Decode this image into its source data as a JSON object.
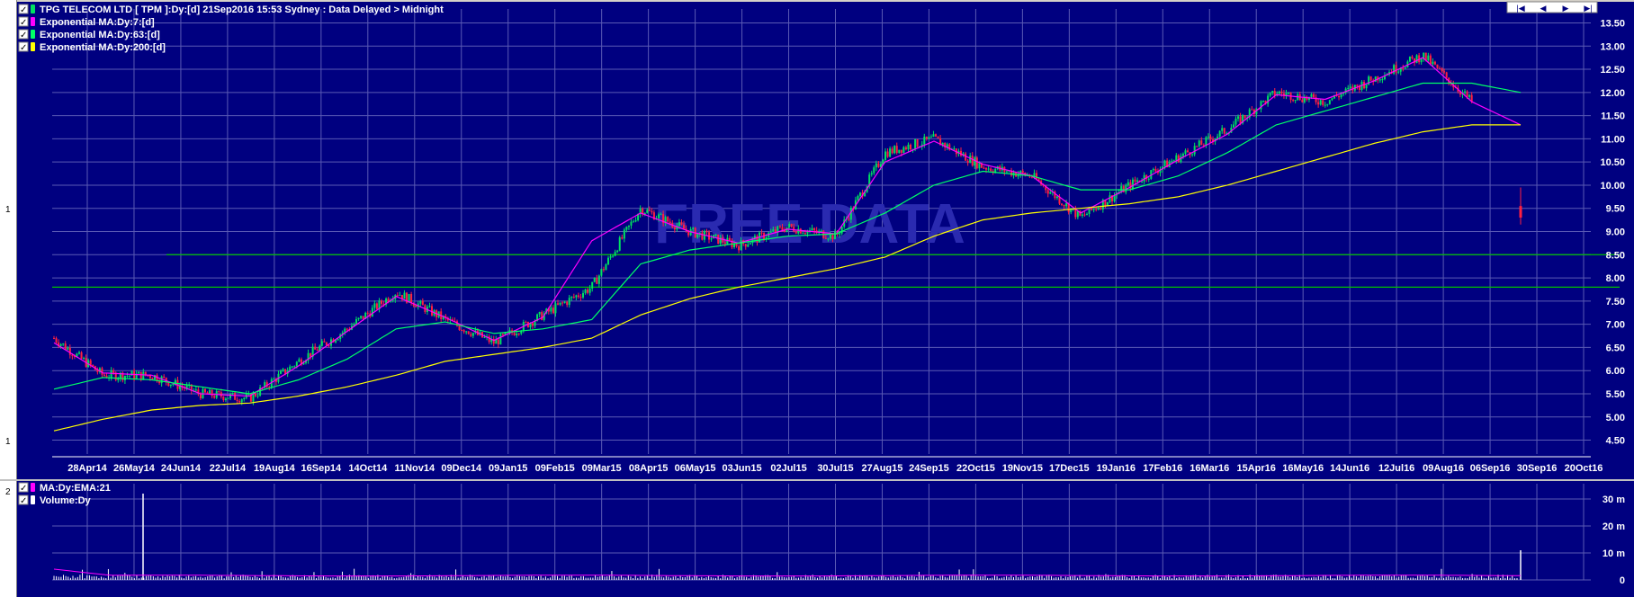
{
  "colors": {
    "background": "#000080",
    "grid": "#5a5ab4",
    "price_up": "#00e060",
    "price_down": "#ff2040",
    "ema7": "#ff00ff",
    "ema63": "#00ff66",
    "ema200": "#ffff00",
    "hline": "#00c000",
    "text": "#ffffff",
    "volume": "#ffffff",
    "watermark": "#2a2ab0"
  },
  "pane_numbers": {
    "top": "1",
    "bottom_top": "1",
    "bottom_bottom": "2"
  },
  "legend_top": [
    {
      "label": "TPG TELECOM LTD [ TPM ]:Dy:[d]  21Sep2016 15:53 Sydney : Data Delayed > Midnight",
      "color": "#00e060"
    },
    {
      "label": "Exponential MA:Dy:7:[d]",
      "color": "#ff00ff"
    },
    {
      "label": "Exponential MA:Dy:63:[d]",
      "color": "#00ff66"
    },
    {
      "label": "Exponential MA:Dy:200:[d]",
      "color": "#ffff00"
    }
  ],
  "legend_bottom": [
    {
      "label": "MA:Dy:EMA:21",
      "color": "#ff00ff"
    },
    {
      "label": "Volume:Dy",
      "color": "#ffffff"
    }
  ],
  "nav_buttons": [
    "|◀",
    "◀",
    "▶",
    "▶|"
  ],
  "watermark": "FREE DATA",
  "chart_data": [
    {
      "type": "line",
      "title": "TPG TELECOM LTD [ TPM ]:Dy:[d]",
      "ylim": [
        4.2,
        13.8
      ],
      "y_ticks": [
        "4.50",
        "5.00",
        "5.50",
        "6.00",
        "6.50",
        "7.00",
        "7.50",
        "8.00",
        "8.50",
        "9.00",
        "9.50",
        "10.00",
        "10.50",
        "11.00",
        "11.50",
        "12.00",
        "12.50",
        "13.00",
        "13.50"
      ],
      "x_ticks": [
        "28Apr14",
        "26May14",
        "24Jun14",
        "22Jul14",
        "19Aug14",
        "16Sep14",
        "14Oct14",
        "11Nov14",
        "09Dec14",
        "09Jan15",
        "09Feb15",
        "09Mar15",
        "08Apr15",
        "06May15",
        "03Jun15",
        "02Jul15",
        "30Jul15",
        "27Aug15",
        "24Sep15",
        "22Oct15",
        "19Nov15",
        "17Dec15",
        "19Jan16",
        "17Feb16",
        "16Mar16",
        "15Apr16",
        "16May16",
        "14Jun16",
        "12Jul16",
        "09Aug16",
        "06Sep16",
        "30Sep16",
        "20Oct16"
      ],
      "horizontal_lines": [
        8.5,
        7.8
      ],
      "series": [
        {
          "name": "TPG TELECOM LTD [ TPM ]:Dy:[d]",
          "x": [
            "Apr14",
            "May14",
            "Jun14",
            "Jul14",
            "Aug14",
            "Sep14",
            "Oct14",
            "Nov14",
            "Dec14",
            "Jan15",
            "Feb15",
            "Mar15",
            "Apr15",
            "May15",
            "Jun15",
            "Jul15",
            "Aug15",
            "Sep15",
            "Oct15",
            "Nov15",
            "Dec15",
            "Jan16",
            "Feb16",
            "Mar16",
            "Apr16",
            "May16",
            "Jun16",
            "Jul16",
            "Aug16",
            "Sep16",
            "21Sep16"
          ],
          "values": [
            6.7,
            5.9,
            5.9,
            5.5,
            5.4,
            6.2,
            6.9,
            7.7,
            7.1,
            6.6,
            7.2,
            7.8,
            9.5,
            9.0,
            8.7,
            9.1,
            8.9,
            10.7,
            11.0,
            10.4,
            10.2,
            9.3,
            10.0,
            10.6,
            11.2,
            12.0,
            11.8,
            12.3,
            12.8,
            11.8,
            9.4
          ]
        },
        {
          "name": "Exponential MA:Dy:7:[d]",
          "values": [
            6.6,
            5.95,
            5.9,
            5.5,
            5.45,
            6.1,
            6.85,
            7.6,
            7.15,
            6.65,
            7.15,
            8.8,
            9.4,
            9.0,
            8.75,
            9.05,
            8.95,
            10.5,
            10.95,
            10.45,
            10.2,
            9.4,
            9.95,
            10.55,
            11.1,
            11.95,
            11.85,
            12.25,
            12.75,
            11.8,
            11.3
          ]
        },
        {
          "name": "Exponential MA:Dy:63:[d]",
          "values": [
            5.6,
            5.85,
            5.8,
            5.65,
            5.5,
            5.8,
            6.25,
            6.9,
            7.05,
            6.8,
            6.9,
            7.1,
            8.3,
            8.6,
            8.75,
            8.9,
            8.95,
            9.4,
            10.0,
            10.3,
            10.2,
            9.9,
            9.9,
            10.2,
            10.7,
            11.3,
            11.6,
            11.9,
            12.2,
            12.2,
            12.0
          ]
        },
        {
          "name": "Exponential MA:Dy:200:[d]",
          "values": [
            4.7,
            4.95,
            5.15,
            5.25,
            5.3,
            5.45,
            5.65,
            5.9,
            6.2,
            6.35,
            6.5,
            6.7,
            7.2,
            7.55,
            7.8,
            8.0,
            8.2,
            8.45,
            8.9,
            9.25,
            9.4,
            9.5,
            9.6,
            9.75,
            10.0,
            10.3,
            10.6,
            10.9,
            11.15,
            11.3,
            11.3
          ]
        }
      ]
    },
    {
      "type": "bar",
      "title": "Volume:Dy",
      "ylim": [
        0,
        35
      ],
      "y_ticks": [
        "0",
        "10 m",
        "20 m",
        "30 m"
      ],
      "notable_values_m": {
        "spike_jun14": 32,
        "spike_21sep16": 11,
        "typical": 1.5
      }
    }
  ]
}
